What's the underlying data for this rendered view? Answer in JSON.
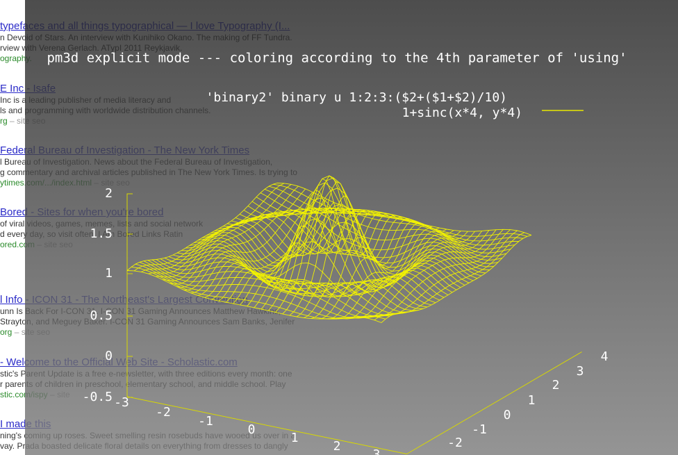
{
  "search_results": [
    {
      "title": "typefaces and all things typographical — I love Typography (I...",
      "lines": [
        "n Devoid of Stars. An interview with Kunihiko Okano. The making of FF Tundra.",
        "rview with Verena Gerlach. ATypI 2011 Reykjavik."
      ],
      "url": "ography."
    },
    {
      "title": "E Inc - Isafe",
      "lines": [
        "Inc is a leading publisher of media literacy and",
        "ls and programming with worldwide distribution channels."
      ],
      "url": "rg",
      "site": "– site",
      "seo": "seo"
    },
    {
      "title": "Federal Bureau of Investigation - The New York Times",
      "lines": [
        "l Bureau of Investigation. News about the Federal Bureau of Investigation,",
        "g commentary and archival articles published in The New York Times. Is trying to"
      ],
      "url": "ytimes.com/.../index.html",
      "site": "– site",
      "seo": "seo"
    },
    {
      "title": "Bored - Sites for when you're bored",
      "lines": [
        "of viral videos, games, memes, lists and social network",
        "d every day, so visit often. I Am Bored Links Ratin"
      ],
      "url": "ored.com",
      "site": "– site",
      "seo": "seo"
    },
    {
      "title": "l Info - ICON 31 - The Northeast's Largest Convention",
      "lines": [
        "unn Is Back For I-CON 31. I-CON 31 Gaming Announces Matthew Hawkins,",
        "Strayton, and Meguey Baker. I-CON 31 Gaming Announces Sam Banks, Jenifer"
      ],
      "url": "org",
      "site": "– site",
      "seo": "seo"
    },
    {
      "title": "- Welcome to the Official Web Site - Scholastic.com",
      "lines": [
        "stic's Parent Update is a free e-newsletter, with three editions every month: one",
        "r parents of children in preschool, elementary school, and middle school. Play"
      ],
      "url": "stic.com/ispy",
      "site": "– site"
    },
    {
      "title": "I made this",
      "lines": [
        "ning's coming up roses. Sweet smelling resin rosebuds have wooed us over in a",
        "vay. Prada boasted delicate floral details on everything from dresses to dangly"
      ]
    }
  ],
  "plot": {
    "title": "pm3d explicit mode --- coloring according to the 4th parameter of 'using'",
    "key_header": "'binary2' binary u 1:2:3:($2+($1+$2)/10)",
    "key_label": "1+sinc(x*4, y*4)",
    "z_ticks": [
      "2",
      "1.5",
      "1",
      "0.5",
      "0",
      "-0.5"
    ],
    "x_ticks": [
      "-3",
      "-2",
      "-1",
      "0",
      "1",
      "2",
      "3"
    ],
    "y_ticks": [
      "-2",
      "-1",
      "0",
      "1",
      "2",
      "3",
      "4"
    ]
  }
}
